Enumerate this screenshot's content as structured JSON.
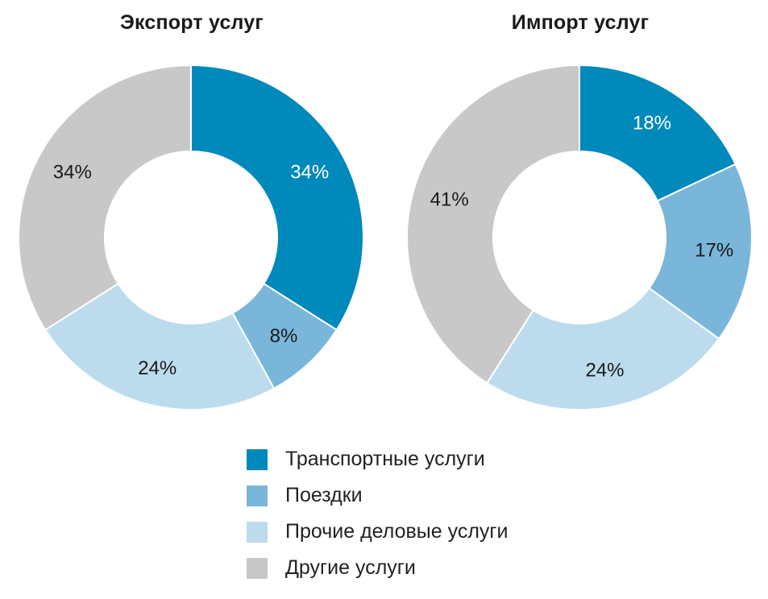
{
  "colors": {
    "transport": "#0089bb",
    "travel": "#7ab6da",
    "business": "#bcdcee",
    "other": "#c8c8c8"
  },
  "legend": [
    {
      "label": "Транспортные услуги",
      "color": "#0089bb"
    },
    {
      "label": "Поездки",
      "color": "#7ab6da"
    },
    {
      "label": "Прочие деловые услуги",
      "color": "#bcdcee"
    },
    {
      "label": "Другие услуги",
      "color": "#c8c8c8"
    }
  ],
  "chart_data": [
    {
      "type": "pie",
      "title": "Экспорт услуг",
      "categories": [
        "Транспортные услуги",
        "Поездки",
        "Прочие деловые услуги",
        "Другие услуги"
      ],
      "values": [
        34,
        8,
        24,
        34
      ],
      "labels": [
        "34%",
        "8%",
        "24%",
        "34%"
      ]
    },
    {
      "type": "pie",
      "title": "Импорт услуг",
      "categories": [
        "Транспортные услуги",
        "Поездки",
        "Прочие деловые услуги",
        "Другие услуги"
      ],
      "values": [
        18,
        17,
        24,
        41
      ],
      "labels": [
        "18%",
        "17%",
        "24%",
        "41%"
      ]
    }
  ]
}
